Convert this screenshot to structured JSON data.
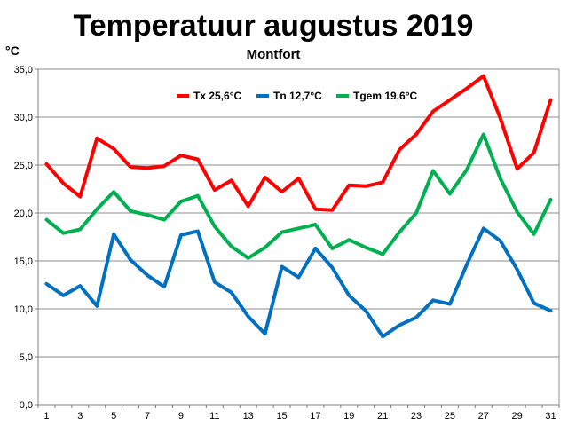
{
  "chart_data": {
    "type": "line",
    "title": "Temperatuur augustus 2019",
    "subtitle": "Montfort",
    "ylabel": "°C",
    "xlabel": "",
    "ylim": [
      0,
      35
    ],
    "yticks": [
      0,
      5,
      10,
      15,
      20,
      25,
      30,
      35
    ],
    "ytick_labels": [
      "0,0",
      "5,0",
      "10,0",
      "15,0",
      "20,0",
      "25,0",
      "30,0",
      "35,0"
    ],
    "x": [
      1,
      2,
      3,
      4,
      5,
      6,
      7,
      8,
      9,
      10,
      11,
      12,
      13,
      14,
      15,
      16,
      17,
      18,
      19,
      20,
      21,
      22,
      23,
      24,
      25,
      26,
      27,
      28,
      29,
      30,
      31
    ],
    "xtick_labels": [
      "1",
      "3",
      "5",
      "7",
      "9",
      "11",
      "13",
      "15",
      "17",
      "19",
      "21",
      "23",
      "25",
      "27",
      "29",
      "31"
    ],
    "grid": true,
    "legend_position": "top-right",
    "series": [
      {
        "name": "Tx 25,6°C",
        "color": "#ff0000",
        "values": [
          25.1,
          23.1,
          21.7,
          27.8,
          26.7,
          24.8,
          24.7,
          24.9,
          26.0,
          25.6,
          22.4,
          23.4,
          20.7,
          23.7,
          22.2,
          23.6,
          20.4,
          20.3,
          22.9,
          22.8,
          23.2,
          26.6,
          28.2,
          30.6,
          31.8,
          33.0,
          34.3,
          29.9,
          24.6,
          26.3,
          31.8
        ]
      },
      {
        "name": "Tn 12,7°C",
        "color": "#0070c0",
        "values": [
          12.6,
          11.4,
          12.4,
          10.3,
          17.8,
          15.1,
          13.5,
          12.3,
          17.7,
          18.1,
          12.8,
          11.7,
          9.2,
          7.4,
          14.4,
          13.3,
          16.3,
          14.3,
          11.4,
          9.8,
          7.1,
          8.3,
          9.1,
          10.9,
          10.5,
          14.6,
          18.4,
          17.1,
          14.1,
          10.6,
          9.8
        ]
      },
      {
        "name": "Tgem 19,6°C",
        "color": "#00b050",
        "values": [
          19.3,
          17.9,
          18.3,
          20.4,
          22.2,
          20.2,
          19.8,
          19.3,
          21.2,
          21.8,
          18.6,
          16.5,
          15.3,
          16.4,
          18.0,
          18.4,
          18.8,
          16.3,
          17.2,
          16.4,
          15.7,
          18.0,
          20.0,
          24.4,
          22.0,
          24.5,
          28.2,
          23.6,
          20.1,
          17.8,
          21.4
        ]
      }
    ]
  }
}
